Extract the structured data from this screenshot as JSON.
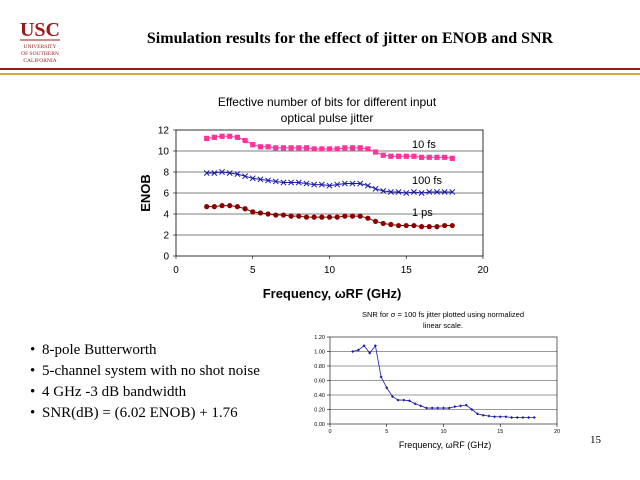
{
  "slide": {
    "title": "Simulation results for the effect of jitter on ENOB and SNR",
    "page_number": "15",
    "logo": {
      "main": "USC",
      "sub1": "UNIVERSITY",
      "sub2": "OF SOUTHERN",
      "sub3": "CALIFORNIA"
    },
    "bullets": [
      "8-pole Butterworth",
      "5-channel system with no shot noise",
      "4 GHz -3 dB bandwidth",
      "SNR(dB) = (6.02 ENOB) + 1.76"
    ],
    "colors": {
      "usc_red": "#9a1b1b",
      "usc_gold": "#d6a93b"
    }
  },
  "chart_data": [
    {
      "type": "line",
      "title_line1": "Effective number of bits for different input",
      "title_line2": "optical pulse jitter",
      "xlabel": "Frequency, ωRF (GHz)",
      "ylabel": "ENOB",
      "xlim": [
        0,
        20
      ],
      "ylim": [
        0,
        12
      ],
      "xticks": [
        0,
        5,
        10,
        15,
        20
      ],
      "yticks": [
        0,
        2,
        4,
        6,
        8,
        10,
        12
      ],
      "grid": true,
      "x": [
        2,
        2.5,
        3,
        3.5,
        4,
        4.5,
        5,
        5.5,
        6,
        6.5,
        7,
        7.5,
        8,
        8.5,
        9,
        9.5,
        10,
        10.5,
        11,
        11.5,
        12,
        12.5,
        13,
        13.5,
        14,
        14.5,
        15,
        15.5,
        16,
        16.5,
        17,
        17.5,
        18
      ],
      "series": [
        {
          "name": "10 fs",
          "color": "#ff3399",
          "marker": "square",
          "values": [
            11.2,
            11.3,
            11.4,
            11.4,
            11.3,
            11.0,
            10.6,
            10.4,
            10.4,
            10.3,
            10.3,
            10.3,
            10.3,
            10.3,
            10.2,
            10.2,
            10.2,
            10.2,
            10.3,
            10.3,
            10.3,
            10.2,
            9.9,
            9.6,
            9.5,
            9.5,
            9.5,
            9.5,
            9.4,
            9.4,
            9.4,
            9.4,
            9.3
          ]
        },
        {
          "name": "100 fs",
          "color": "#1a1aa8",
          "marker": "x",
          "values": [
            7.9,
            7.9,
            8.0,
            7.9,
            7.8,
            7.6,
            7.4,
            7.3,
            7.2,
            7.1,
            7.0,
            7.0,
            7.0,
            6.9,
            6.8,
            6.8,
            6.7,
            6.8,
            6.9,
            6.9,
            6.9,
            6.7,
            6.4,
            6.2,
            6.1,
            6.1,
            6.0,
            6.1,
            6.0,
            6.1,
            6.1,
            6.1,
            6.1
          ]
        },
        {
          "name": "1 ps",
          "color": "#8b0000",
          "marker": "circle",
          "values": [
            4.7,
            4.7,
            4.8,
            4.8,
            4.7,
            4.5,
            4.2,
            4.1,
            4.0,
            3.9,
            3.9,
            3.8,
            3.8,
            3.7,
            3.7,
            3.7,
            3.7,
            3.7,
            3.8,
            3.8,
            3.8,
            3.6,
            3.3,
            3.1,
            3.0,
            2.9,
            2.9,
            2.9,
            2.8,
            2.8,
            2.8,
            2.9,
            2.9
          ]
        }
      ]
    },
    {
      "type": "line",
      "title_line1": "SNR for σ = 100 fs jitter plotted using normalized",
      "title_line2": "linear scale.",
      "xlabel": "Frequency, ωRF (GHz)",
      "ylabel": "",
      "xlim": [
        0,
        20
      ],
      "ylim": [
        0,
        1.2
      ],
      "xticks": [
        0,
        5,
        10,
        15,
        20
      ],
      "ytick_values": [
        0,
        0.2,
        0.4,
        0.6,
        0.8,
        1.0,
        1.2
      ],
      "ytick_labels": [
        "0.00",
        "0.20",
        "0.40",
        "0.60",
        "0.80",
        "1.00",
        "1.20"
      ],
      "grid": true,
      "x": [
        2,
        2.5,
        3,
        3.5,
        4,
        4.5,
        5,
        5.5,
        6,
        6.5,
        7,
        7.5,
        8,
        8.5,
        9,
        9.5,
        10,
        10.5,
        11,
        11.5,
        12,
        12.5,
        13,
        13.5,
        14,
        14.5,
        15,
        15.5,
        16,
        16.5,
        17,
        17.5,
        18
      ],
      "series": [
        {
          "name": "SNR",
          "color": "#1a1aa8",
          "marker": "diamond",
          "values": [
            1.0,
            1.02,
            1.08,
            0.98,
            1.08,
            0.65,
            0.5,
            0.38,
            0.33,
            0.33,
            0.32,
            0.28,
            0.25,
            0.22,
            0.22,
            0.22,
            0.22,
            0.22,
            0.24,
            0.25,
            0.26,
            0.2,
            0.14,
            0.12,
            0.11,
            0.1,
            0.1,
            0.1,
            0.09,
            0.09,
            0.09,
            0.09,
            0.09
          ]
        }
      ]
    }
  ]
}
